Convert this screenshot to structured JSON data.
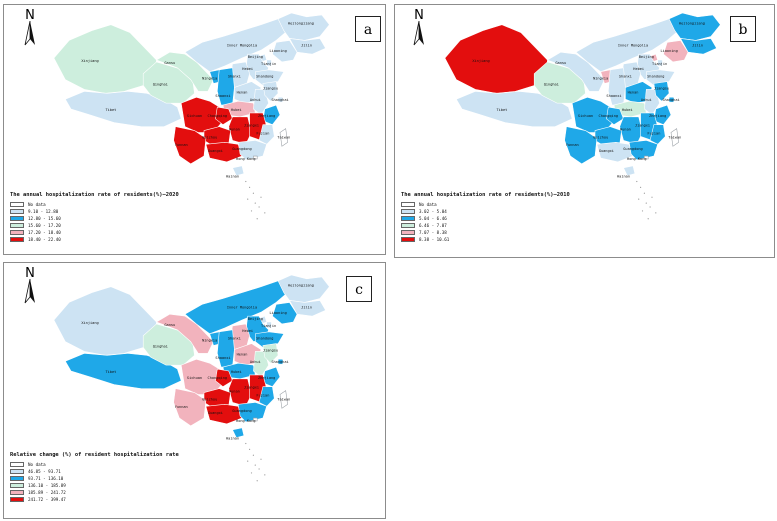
{
  "colors": {
    "c1": "#cde3f3",
    "c2": "#1fa8e8",
    "c3": "#cdeedd",
    "c4": "#f2b3bd",
    "c5": "#e30e0e",
    "nodata": "#ffffff",
    "border": "#ffffff",
    "outline": "#9aa0a6"
  },
  "north_label": "N",
  "province_labels": [
    "Xinjiang",
    "Tibet",
    "Qinghai",
    "Gansu",
    "Inner Mongolia",
    "Heilongjiang",
    "Jilin",
    "Liaoning",
    "Beijing",
    "Tianjin",
    "Hebei",
    "Shanxi",
    "Ningxia",
    "Shaanxi",
    "Henan",
    "Shandong",
    "Hubei",
    "Anhui",
    "Jiangsu",
    "Shanghai",
    "Zhejiang",
    "Sichuan",
    "Chongqing",
    "Hunan",
    "Jiangxi",
    "Fujian",
    "Guizhou",
    "Yunnan",
    "Guangxi",
    "Guangdong",
    "Hong Kong",
    "Taiwan",
    "Hainan"
  ],
  "panels": [
    {
      "letter": "a",
      "title": "The annual hospitalization rate of residents(%)—2020",
      "legend": [
        "No data",
        "9.10 - 12.80",
        "12.80 - 15.60",
        "15.60 - 17.20",
        "17.20 - 18.40",
        "18.40 - 22.40"
      ],
      "classes": {
        "Xinjiang": 3,
        "Tibet": 1,
        "Qinghai": 3,
        "Gansu": 3,
        "Inner Mongolia": 1,
        "Heilongjiang": 1,
        "Jilin": 1,
        "Liaoning": 1,
        "Beijing": 1,
        "Tianjin": 1,
        "Hebei": 1,
        "Shanxi": 1,
        "Ningxia": 2,
        "Shaanxi": 2,
        "Henan": 1,
        "Shandong": 1,
        "Hubei": 4,
        "Anhui": 1,
        "Jiangsu": 1,
        "Shanghai": 1,
        "Zhejiang": 2,
        "Sichuan": 5,
        "Chongqing": 5,
        "Hunan": 5,
        "Jiangxi": 5,
        "Fujian": 1,
        "Guizhou": 5,
        "Yunnan": 5,
        "Guangxi": 5,
        "Guangdong": 1,
        "Hong Kong": 0,
        "Taiwan": 0,
        "Hainan": 1
      }
    },
    {
      "letter": "b",
      "title": "The annual hospitalization rate of residents(%)—2010",
      "legend": [
        "No data",
        "3.02 - 5.04",
        "5.04 - 6.46",
        "6.46 - 7.07",
        "7.07 - 8.38",
        "8.38 - 10.61"
      ],
      "classes": {
        "Xinjiang": 5,
        "Tibet": 1,
        "Qinghai": 3,
        "Gansu": 1,
        "Inner Mongolia": 1,
        "Heilongjiang": 2,
        "Jilin": 2,
        "Liaoning": 4,
        "Beijing": 4,
        "Tianjin": 1,
        "Hebei": 1,
        "Shanxi": 1,
        "Ningxia": 4,
        "Shaanxi": 1,
        "Henan": 2,
        "Shandong": 1,
        "Hubei": 3,
        "Anhui": 1,
        "Jiangsu": 2,
        "Shanghai": 2,
        "Zhejiang": 2,
        "Sichuan": 2,
        "Chongqing": 2,
        "Hunan": 2,
        "Jiangxi": 2,
        "Fujian": 2,
        "Guizhou": 2,
        "Yunnan": 2,
        "Guangxi": 1,
        "Guangdong": 2,
        "Hong Kong": 0,
        "Taiwan": 0,
        "Hainan": 1
      }
    },
    {
      "letter": "c",
      "title": "Relative change (%) of resident hospitalization rate",
      "legend": [
        "No data",
        "46.85 - 93.71",
        "93.71 - 136.10",
        "136.10 - 185.89",
        "185.89 - 241.72",
        "241.72 - 399.47"
      ],
      "classes": {
        "Xinjiang": 1,
        "Tibet": 2,
        "Qinghai": 3,
        "Gansu": 4,
        "Inner Mongolia": 2,
        "Heilongjiang": 1,
        "Jilin": 1,
        "Liaoning": 2,
        "Beijing": 1,
        "Tianjin": 1,
        "Hebei": 2,
        "Shanxi": 4,
        "Ningxia": 2,
        "Shaanxi": 2,
        "Henan": 4,
        "Shandong": 2,
        "Hubei": 2,
        "Anhui": 3,
        "Jiangsu": 3,
        "Shanghai": 2,
        "Zhejiang": 2,
        "Sichuan": 4,
        "Chongqing": 5,
        "Hunan": 5,
        "Jiangxi": 5,
        "Fujian": 2,
        "Guizhou": 5,
        "Yunnan": 4,
        "Guangxi": 5,
        "Guangdong": 2,
        "Hong Kong": 0,
        "Taiwan": 0,
        "Hainan": 2
      }
    }
  ]
}
